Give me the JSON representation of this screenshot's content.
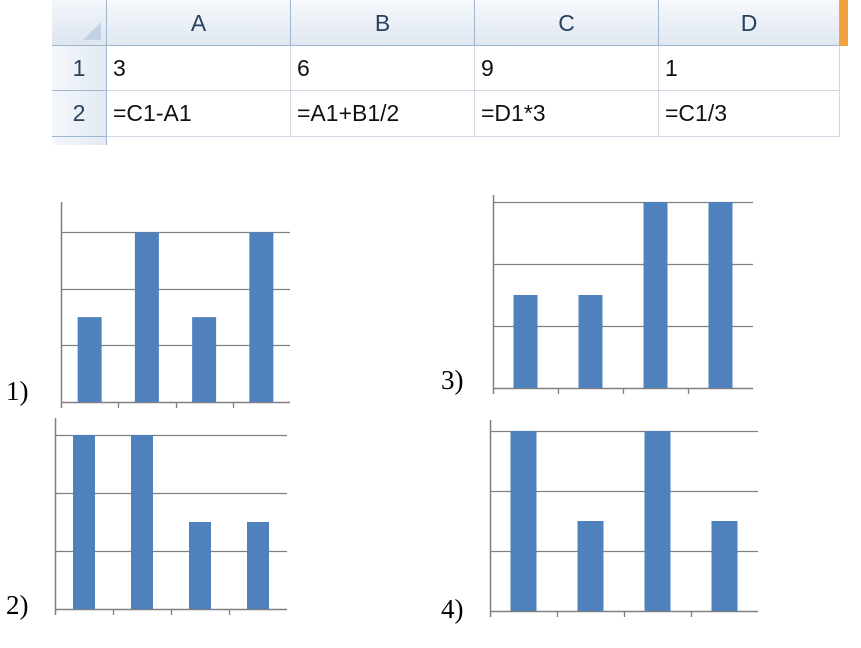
{
  "spreadsheet": {
    "columns": [
      "A",
      "B",
      "C",
      "D"
    ],
    "rows": [
      {
        "number": "1",
        "cells": [
          "3",
          "6",
          "9",
          "1"
        ]
      },
      {
        "number": "2",
        "cells": [
          "=C1-A1",
          "=A1+B1/2",
          "=D1*3",
          "=C1/3"
        ]
      }
    ]
  },
  "options": [
    {
      "label": "1)"
    },
    {
      "label": "2)"
    },
    {
      "label": "3)"
    },
    {
      "label": "4)"
    }
  ],
  "colors": {
    "bar": "#4f81bd",
    "grid": "#808080",
    "axis": "#808080"
  },
  "chart_data": [
    {
      "type": "bar",
      "categories": [
        "",
        "",
        "",
        ""
      ],
      "values": [
        1.5,
        3,
        1.5,
        3
      ],
      "ylim": [
        0,
        3.5
      ],
      "grid": true
    },
    {
      "type": "bar",
      "categories": [
        "",
        "",
        "",
        ""
      ],
      "values": [
        3,
        3,
        1.5,
        1.5
      ],
      "ylim": [
        0,
        3
      ],
      "grid": true
    },
    {
      "type": "bar",
      "categories": [
        "",
        "",
        "",
        ""
      ],
      "values": [
        1.5,
        1.5,
        3,
        3
      ],
      "ylim": [
        0,
        3
      ],
      "grid": true
    },
    {
      "type": "bar",
      "categories": [
        "",
        "",
        "",
        ""
      ],
      "values": [
        3,
        1.5,
        3,
        1.5
      ],
      "ylim": [
        0,
        3
      ],
      "grid": true
    }
  ]
}
